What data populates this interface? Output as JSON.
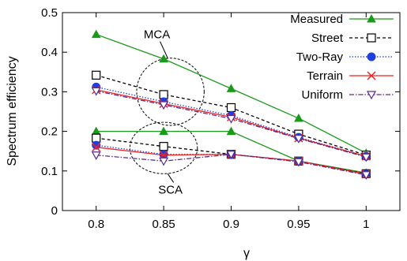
{
  "chart_data": {
    "type": "line",
    "xlabel": "γ",
    "ylabel": "Spectrum efficiency",
    "x": [
      0.8,
      0.85,
      0.9,
      0.95,
      1
    ],
    "x_tick_labels": [
      "0.8",
      "0.85",
      "0.9",
      "0.95",
      "1"
    ],
    "xlim": [
      0.775,
      1.025
    ],
    "ylim": [
      0,
      0.5
    ],
    "y_ticks": [
      0,
      0.1,
      0.2,
      0.3,
      0.4,
      0.5
    ],
    "y_tick_labels": [
      "0",
      "0.1",
      "0.2",
      "0.3",
      "0.4",
      "0.5"
    ],
    "grid": false,
    "legend_position": "top-right",
    "series": [
      {
        "name": "Measured",
        "color": "#1a9a1a",
        "dash": "solid",
        "marker": "triangle-up-filled",
        "values_mca": [
          0.445,
          0.383,
          0.308,
          0.233,
          0.145
        ],
        "values_sca": [
          0.2,
          0.2,
          0.2,
          0.125,
          0.095
        ]
      },
      {
        "name": "Street",
        "color": "#000000",
        "dash": "dashed",
        "marker": "square-open",
        "values_mca": [
          0.342,
          0.293,
          0.26,
          0.193,
          0.14
        ],
        "values_sca": [
          0.183,
          0.162,
          0.142,
          0.125,
          0.093
        ]
      },
      {
        "name": "Two-Ray",
        "color": "#1f3fe0",
        "dash": "dotted",
        "marker": "circle-filled",
        "values_mca": [
          0.312,
          0.275,
          0.24,
          0.185,
          0.137
        ],
        "values_sca": [
          0.165,
          0.142,
          0.142,
          0.125,
          0.092
        ]
      },
      {
        "name": "Terrain",
        "color": "#ee2222",
        "dash": "solid",
        "marker": "x",
        "values_mca": [
          0.305,
          0.27,
          0.236,
          0.183,
          0.137
        ],
        "values_sca": [
          0.16,
          0.14,
          0.142,
          0.125,
          0.092
        ]
      },
      {
        "name": "Uniform",
        "color": "#5a2c8a",
        "dash": "dashdot",
        "marker": "triangle-down-open",
        "values_mca": [
          0.302,
          0.267,
          0.232,
          0.182,
          0.135
        ],
        "values_sca": [
          0.14,
          0.125,
          0.142,
          0.123,
          0.09
        ]
      }
    ],
    "annotations": [
      {
        "text": "MCA",
        "cx": 0.855,
        "cy": 0.3,
        "rx": 0.025,
        "ry": 0.085,
        "label_x": 0.845,
        "label_y": 0.435,
        "arrow_to_x": 0.853,
        "arrow_to_y": 0.385
      },
      {
        "text": "SCA",
        "cx": 0.85,
        "cy": 0.158,
        "rx": 0.025,
        "ry": 0.065,
        "label_x": 0.855,
        "label_y": 0.043,
        "arrow_to_x": 0.853,
        "arrow_to_y": 0.093
      }
    ]
  }
}
